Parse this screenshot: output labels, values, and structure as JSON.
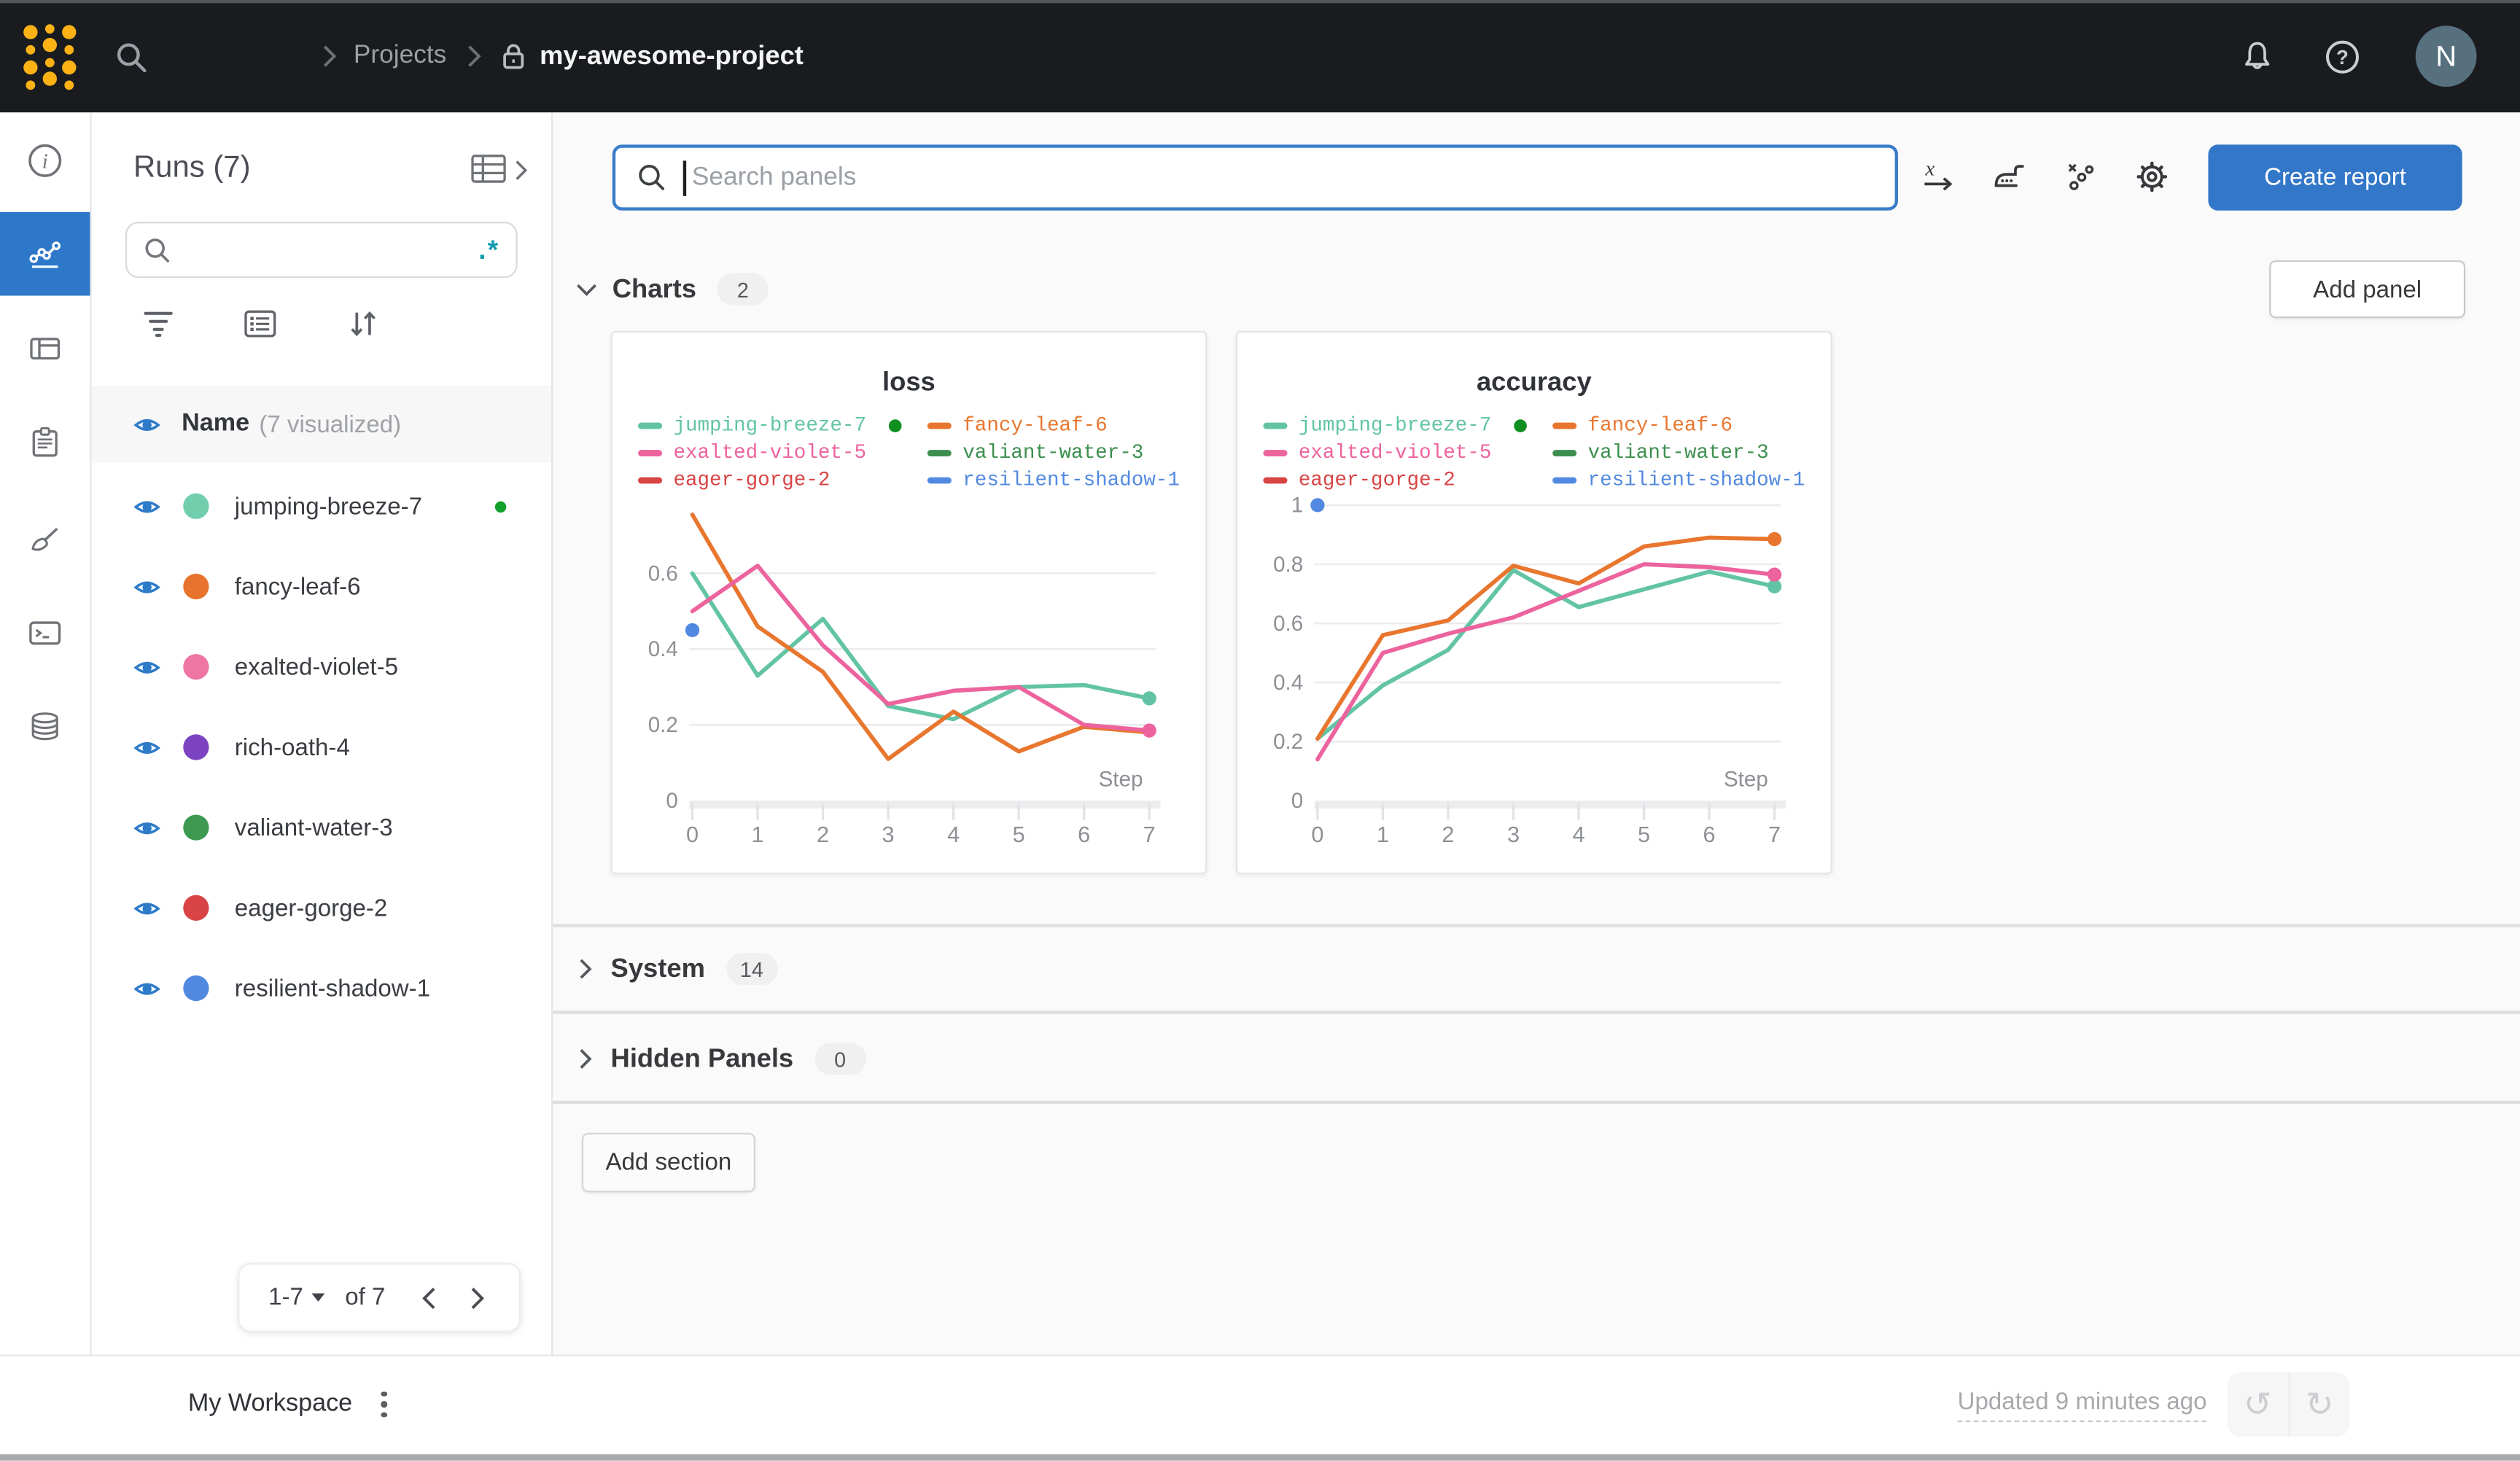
{
  "topbar": {
    "breadcrumb": {
      "projects": "Projects",
      "project": "my-awesome-project"
    },
    "avatar": "N"
  },
  "sidebar": {
    "title": "Runs (7)",
    "regex_label": ".*",
    "search_value": "",
    "header": {
      "name": "Name",
      "visualized": "(7 visualized)"
    },
    "runs": [
      {
        "name": "jumping-breeze-7",
        "color": "#72cfae",
        "active": true
      },
      {
        "name": "fancy-leaf-6",
        "color": "#e8732e",
        "active": false
      },
      {
        "name": "exalted-violet-5",
        "color": "#ef75a3",
        "active": false
      },
      {
        "name": "rich-oath-4",
        "color": "#7d44c1",
        "active": false
      },
      {
        "name": "valiant-water-3",
        "color": "#3d9a50",
        "active": false
      },
      {
        "name": "eager-gorge-2",
        "color": "#d94444",
        "active": false
      },
      {
        "name": "resilient-shadow-1",
        "color": "#5289e0",
        "active": false
      }
    ],
    "pagination": {
      "range": "1-7",
      "of": "of 7"
    }
  },
  "main": {
    "search_placeholder": "Search panels",
    "create_report": "Create report",
    "add_panel": "Add panel",
    "add_section": "Add section",
    "sections": [
      {
        "label": "Charts",
        "count": "2"
      },
      {
        "label": "System",
        "count": "14"
      },
      {
        "label": "Hidden Panels",
        "count": "0"
      }
    ]
  },
  "footer": {
    "workspace": "My Workspace",
    "updated": "Updated 9 minutes ago"
  },
  "colors": {
    "brand_gold": "#fcb215",
    "accent_blue": "#2e78c9",
    "status_green": "#12a22c",
    "navbar_bg": "#191b1f"
  },
  "chart_data": [
    {
      "type": "line",
      "title": "loss",
      "xlabel": "Step",
      "x": [
        0,
        1,
        2,
        3,
        4,
        5,
        6,
        7
      ],
      "ylim": [
        0,
        0.78
      ],
      "yticks": [
        0,
        0.2,
        0.4,
        0.6
      ],
      "grid": true,
      "legend_position": "top",
      "series": [
        {
          "name": "jumping-breeze-7",
          "color": "#62c4a5",
          "status_dot": true,
          "dot_last": true,
          "values": [
            [
              0,
              0.6
            ],
            [
              1,
              0.33
            ],
            [
              2,
              0.48
            ],
            [
              3,
              0.25
            ],
            [
              4,
              0.215
            ],
            [
              5,
              0.3
            ],
            [
              6,
              0.305
            ],
            [
              7,
              0.27
            ]
          ]
        },
        {
          "name": "fancy-leaf-6",
          "color": "#e8762f",
          "dot_last": false,
          "values": [
            [
              0,
              0.755
            ],
            [
              1,
              0.46
            ],
            [
              2,
              0.34
            ],
            [
              3,
              0.11
            ],
            [
              4,
              0.235
            ],
            [
              5,
              0.13
            ],
            [
              6,
              0.195
            ],
            [
              7,
              0.18
            ]
          ]
        },
        {
          "name": "exalted-violet-5",
          "color": "#ec639e",
          "dot_last": true,
          "values": [
            [
              0,
              0.5
            ],
            [
              1,
              0.62
            ],
            [
              2,
              0.41
            ],
            [
              3,
              0.255
            ],
            [
              4,
              0.29
            ],
            [
              5,
              0.3
            ],
            [
              6,
              0.2
            ],
            [
              7,
              0.185
            ]
          ]
        },
        {
          "name": "valiant-water-3",
          "color": "#3d8f4f",
          "values": []
        },
        {
          "name": "eager-gorge-2",
          "color": "#d94444",
          "values": []
        },
        {
          "name": "resilient-shadow-1",
          "color": "#5289e0",
          "values": [
            [
              0,
              0.45
            ]
          ]
        }
      ]
    },
    {
      "type": "line",
      "title": "accuracy",
      "xlabel": "Step",
      "x": [
        0,
        1,
        2,
        3,
        4,
        5,
        6,
        7
      ],
      "ylim": [
        0,
        1.0
      ],
      "yticks": [
        0,
        0.2,
        0.4,
        0.6,
        0.8,
        1
      ],
      "grid": true,
      "legend_position": "top",
      "series": [
        {
          "name": "jumping-breeze-7",
          "color": "#62c4a5",
          "status_dot": true,
          "dot_last": true,
          "values": [
            [
              0,
              0.21
            ],
            [
              1,
              0.39
            ],
            [
              2,
              0.51
            ],
            [
              3,
              0.78
            ],
            [
              4,
              0.655
            ],
            [
              5,
              0.715
            ],
            [
              6,
              0.775
            ],
            [
              7,
              0.725
            ]
          ]
        },
        {
          "name": "fancy-leaf-6",
          "color": "#e8762f",
          "dot_last": true,
          "values": [
            [
              0,
              0.21
            ],
            [
              1,
              0.56
            ],
            [
              2,
              0.61
            ],
            [
              3,
              0.795
            ],
            [
              4,
              0.735
            ],
            [
              5,
              0.86
            ],
            [
              6,
              0.89
            ],
            [
              7,
              0.885
            ]
          ]
        },
        {
          "name": "exalted-violet-5",
          "color": "#ec639e",
          "dot_last": true,
          "values": [
            [
              0,
              0.14
            ],
            [
              1,
              0.5
            ],
            [
              2,
              0.565
            ],
            [
              3,
              0.62
            ],
            [
              4,
              0.71
            ],
            [
              5,
              0.8
            ],
            [
              6,
              0.79
            ],
            [
              7,
              0.765
            ]
          ]
        },
        {
          "name": "valiant-water-3",
          "color": "#3d8f4f",
          "values": []
        },
        {
          "name": "eager-gorge-2",
          "color": "#d94444",
          "values": []
        },
        {
          "name": "resilient-shadow-1",
          "color": "#5289e0",
          "values": [
            [
              0,
              1.0
            ]
          ]
        }
      ]
    }
  ]
}
